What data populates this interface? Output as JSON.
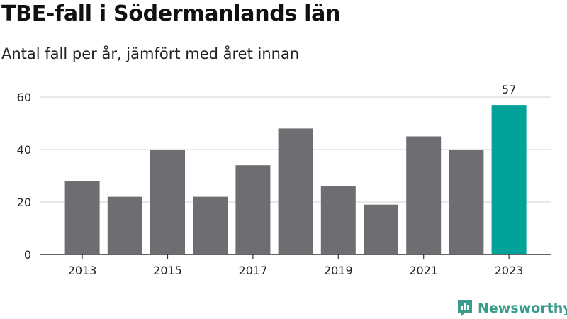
{
  "title": "TBE-fall i Södermanlands län",
  "subtitle": "Antal fall per år, jämfört med året innan",
  "brand": "Newsworthy",
  "colors": {
    "bar": "#6e6d72",
    "highlight": "#00a29a",
    "grid": "#d9d9d9",
    "axis": "#333333",
    "brand": "#3a9c8a"
  },
  "chart_data": {
    "type": "bar",
    "categories": [
      "2013",
      "2014",
      "2015",
      "2016",
      "2017",
      "2018",
      "2019",
      "2020",
      "2021",
      "2022",
      "2023"
    ],
    "values": [
      28,
      22,
      40,
      22,
      34,
      48,
      26,
      19,
      45,
      40,
      57
    ],
    "x_tick_labels": [
      "2013",
      "2015",
      "2017",
      "2019",
      "2021",
      "2023"
    ],
    "y_ticks": [
      0,
      20,
      40,
      60
    ],
    "ylim": [
      0,
      60
    ],
    "highlight_category": "2023",
    "data_labels": [
      {
        "category": "2023",
        "text": "57"
      }
    ],
    "grid": true
  }
}
